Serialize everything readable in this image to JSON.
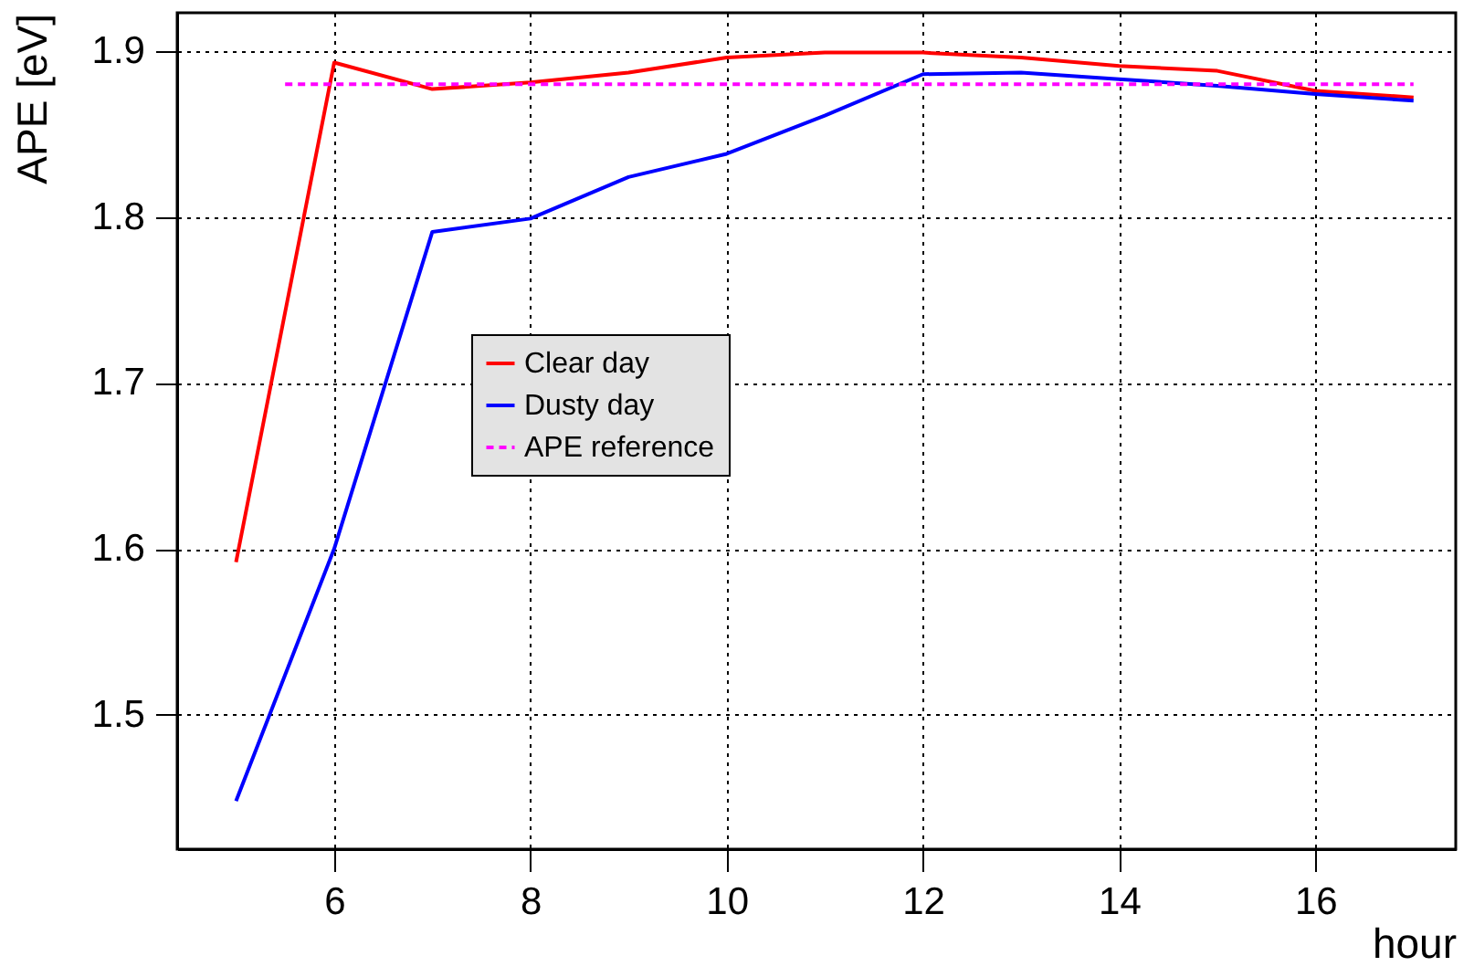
{
  "chart_data": {
    "type": "line",
    "xlabel": "hour",
    "ylabel": "APE [eV]",
    "xlim": [
      4.4,
      17.43
    ],
    "xticks": [
      6,
      8,
      10,
      12,
      14,
      16
    ],
    "ylim": [
      1.419,
      1.923
    ],
    "yticks": [
      1.5,
      1.6,
      1.7,
      1.8,
      1.9
    ],
    "grid": true,
    "legend": "left",
    "marker": "none",
    "series": [
      {
        "name": "Clear day",
        "color": "#ff0000",
        "line_style": "solid",
        "x": [
          5,
          6,
          7,
          8,
          9,
          10,
          11,
          12,
          13,
          14,
          15,
          16,
          17
        ],
        "values": [
          1.592,
          1.893,
          1.877,
          1.881,
          1.887,
          1.896,
          1.899,
          1.899,
          1.896,
          1.891,
          1.888,
          1.876,
          1.872
        ]
      },
      {
        "name": "Dusty day",
        "color": "#0000ff",
        "line_style": "solid",
        "x": [
          5,
          6,
          7,
          8,
          9,
          10,
          11,
          12,
          13,
          14,
          15,
          16,
          17
        ],
        "values": [
          1.448,
          1.6,
          1.791,
          1.799,
          1.824,
          1.838,
          1.861,
          1.886,
          1.887,
          1.883,
          1.879,
          1.874,
          1.87
        ]
      },
      {
        "name": "APE reference",
        "color": "#ff00ff",
        "line_style": "dotted",
        "x": [
          5.5,
          17
        ],
        "values": [
          1.88,
          1.88
        ]
      }
    ]
  }
}
